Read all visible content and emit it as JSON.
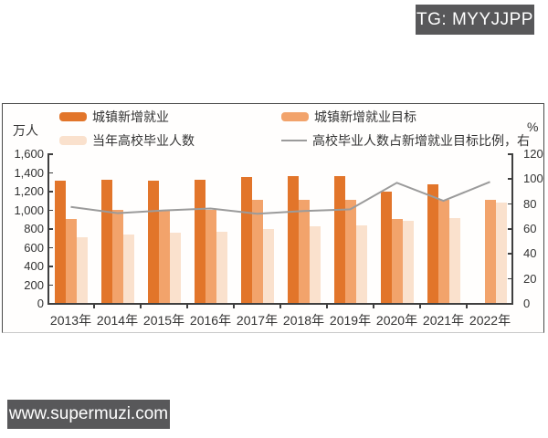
{
  "watermarks": {
    "top_right": "TG: MYYJJPP",
    "bottom_left": "www.supermuzi.com"
  },
  "chart_data": {
    "type": "bar",
    "subtype": "grouped bars with secondary-axis line",
    "categories": [
      "2013年",
      "2014年",
      "2015年",
      "2016年",
      "2017年",
      "2018年",
      "2019年",
      "2020年",
      "2021年",
      "2022年"
    ],
    "series": [
      {
        "name": "城镇新增就业",
        "type": "bar",
        "color": "#e2752a",
        "axis": "left",
        "values": [
          1310,
          1322,
          1312,
          1314,
          1351,
          1361,
          1352,
          1186,
          1269,
          null
        ]
      },
      {
        "name": "城镇新增就业目标",
        "type": "bar",
        "color": "#f2a36b",
        "axis": "left",
        "values": [
          900,
          1000,
          1000,
          1000,
          1100,
          1100,
          1100,
          900,
          1100,
          1100
        ]
      },
      {
        "name": "当年高校毕业人数",
        "type": "bar",
        "color": "#fae1cd",
        "axis": "left",
        "values": [
          699,
          727,
          749,
          765,
          795,
          820,
          834,
          874,
          909,
          1076
        ]
      },
      {
        "name": "高校毕业人数占新增就业目标比例，右",
        "type": "line",
        "color": "#9b9b9b",
        "axis": "right",
        "values": [
          77.7,
          72.7,
          74.9,
          76.5,
          72.3,
          74.5,
          75.8,
          97.1,
          82.6,
          97.8
        ]
      }
    ],
    "left_axis": {
      "unit": "万人",
      "min": 0,
      "max": 1600,
      "step": 200,
      "ticks": [
        "1,600",
        "1,400",
        "1,200",
        "1,000",
        "800",
        "600",
        "400",
        "200",
        "0"
      ]
    },
    "right_axis": {
      "unit": "%",
      "min": 0,
      "max": 120,
      "step": 20,
      "ticks": [
        "120",
        "100",
        "80",
        "60",
        "40",
        "20",
        "0"
      ]
    },
    "grid": false,
    "legend_position": "top"
  }
}
